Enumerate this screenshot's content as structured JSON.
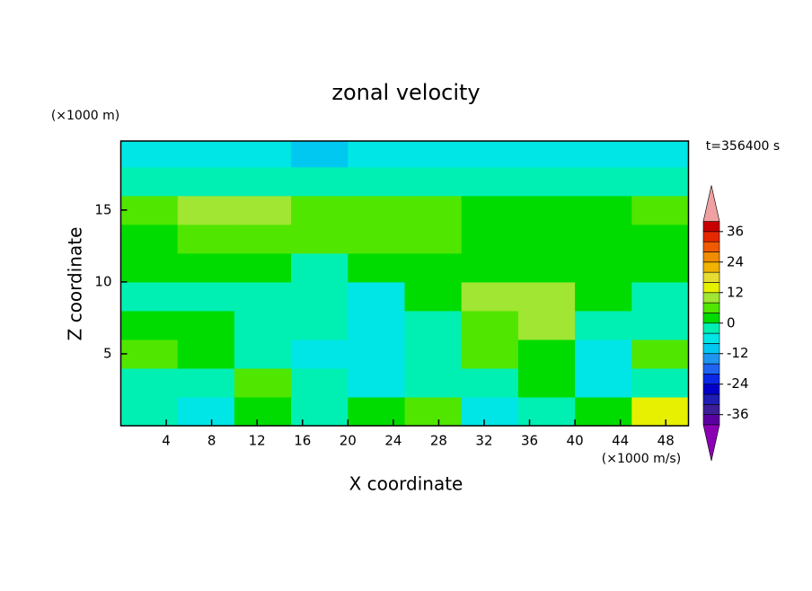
{
  "chart_data": {
    "type": "contour",
    "title": "zonal velocity",
    "x_label": "X coordinate",
    "y_label": "Z coordinate",
    "x_unit": "(×1000 m/s)",
    "y_unit": "(×1000 m)",
    "time_label": "t=356400 s",
    "xlim": [
      0,
      50
    ],
    "ylim": [
      0,
      19.8
    ],
    "xticks": [
      4,
      8,
      12,
      16,
      20,
      24,
      28,
      32,
      36,
      40,
      44,
      48
    ],
    "yticks": [
      5,
      10,
      15
    ],
    "x": [
      2.5,
      7.5,
      12.5,
      17.5,
      22.5,
      27.5,
      32.5,
      37.5,
      42.5,
      47.5
    ],
    "y": [
      1,
      3,
      5,
      7,
      9,
      11,
      13,
      15,
      17,
      19
    ],
    "z": [
      [
        -2,
        -6,
        2,
        -2,
        2,
        6,
        -6,
        -2,
        2,
        14
      ],
      [
        -2,
        -2,
        6,
        -2,
        -6,
        -2,
        -2,
        2,
        -6,
        -2
      ],
      [
        6,
        2,
        -2,
        -6,
        -6,
        -2,
        6,
        2,
        -6,
        6
      ],
      [
        2,
        2,
        -2,
        -2,
        -6,
        -2,
        6,
        10,
        -2,
        -2
      ],
      [
        -2,
        -2,
        -2,
        -2,
        -6,
        2,
        10,
        10,
        2,
        -2
      ],
      [
        2,
        2,
        2,
        -2,
        2,
        2,
        2,
        2,
        2,
        2
      ],
      [
        2,
        6,
        6,
        6,
        6,
        6,
        2,
        2,
        2,
        2
      ],
      [
        6,
        10,
        10,
        6,
        6,
        6,
        2,
        2,
        2,
        6
      ],
      [
        -2,
        -2,
        -2,
        -2,
        -2,
        -2,
        -2,
        -2,
        -2,
        -2
      ],
      [
        -6,
        -6,
        -6,
        -10,
        -6,
        -6,
        -6,
        -6,
        -6,
        -6
      ]
    ],
    "levels": [
      -40,
      -36,
      -32,
      -28,
      -24,
      -20,
      -16,
      -12,
      -8,
      -4,
      0,
      4,
      8,
      12,
      16,
      20,
      24,
      28,
      32,
      36,
      40
    ],
    "colors": [
      "#8c00b4",
      "#5a00a0",
      "#3c1e96",
      "#1e1eb4",
      "#0000c8",
      "#0a28e6",
      "#1e64f0",
      "#1e96f0",
      "#00c8f0",
      "#00e6e6",
      "#00f0b4",
      "#00dc00",
      "#50e600",
      "#a0e632",
      "#e6f000",
      "#e6dc32",
      "#f0b400",
      "#f08c00",
      "#f05a00",
      "#e62800",
      "#c80000",
      "#f0a0a0"
    ],
    "cbar_ticks": [
      -36,
      -24,
      -12,
      0,
      12,
      24,
      36
    ]
  }
}
